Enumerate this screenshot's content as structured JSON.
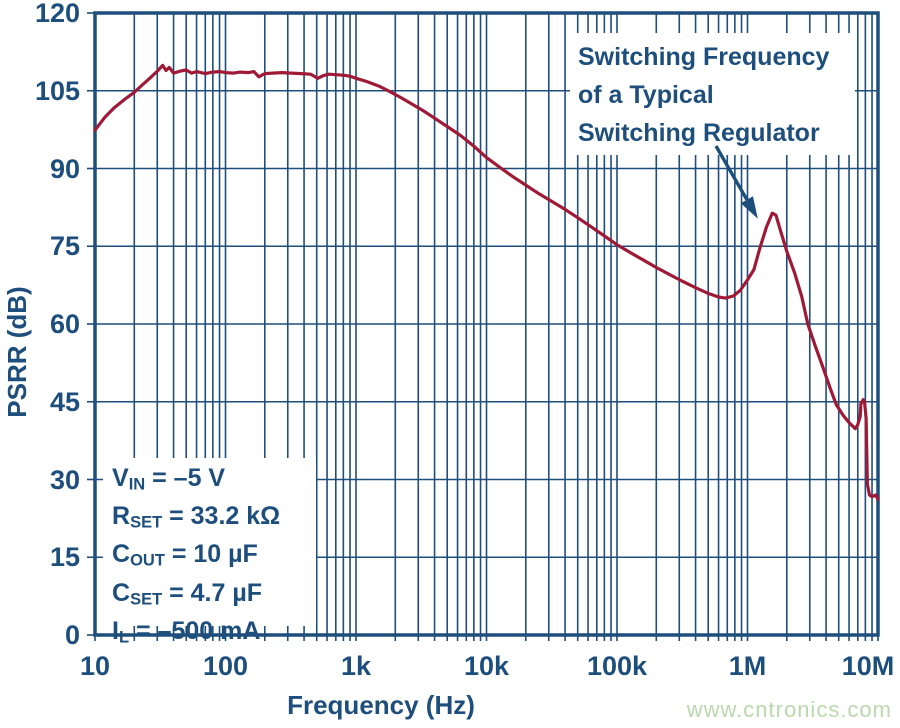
{
  "watermark": {
    "text": "www.cntronics.com",
    "color": "#b9d9ad"
  },
  "chart_data": {
    "type": "line",
    "title": "",
    "xlabel": "Frequency (Hz)",
    "ylabel": "PSRR (dB)",
    "x_scale": "log",
    "xlim": [
      10,
      10000000
    ],
    "ylim": [
      0,
      120
    ],
    "grid": "full log minor + major grid, navy",
    "legend": "none",
    "colors": {
      "axis": "#1d4e7c",
      "curve": "#9e1a36"
    },
    "x_ticks": [
      {
        "v": 10,
        "label": "10"
      },
      {
        "v": 100,
        "label": "100"
      },
      {
        "v": 1000,
        "label": "1k"
      },
      {
        "v": 10000,
        "label": "10k"
      },
      {
        "v": 100000,
        "label": "100k"
      },
      {
        "v": 1000000,
        "label": "1M"
      },
      {
        "v": 10000000,
        "label": "10M"
      }
    ],
    "y_ticks": [
      {
        "v": 0,
        "label": "0"
      },
      {
        "v": 15,
        "label": "15"
      },
      {
        "v": 30,
        "label": "30"
      },
      {
        "v": 45,
        "label": "45"
      },
      {
        "v": 60,
        "label": "60"
      },
      {
        "v": 75,
        "label": "75"
      },
      {
        "v": 90,
        "label": "90"
      },
      {
        "v": 105,
        "label": "105"
      },
      {
        "v": 120,
        "label": "120"
      }
    ],
    "series": [
      {
        "name": "PSRR",
        "points": [
          [
            10,
            97.4
          ],
          [
            12,
            100.0
          ],
          [
            14,
            101.7
          ],
          [
            17,
            103.4
          ],
          [
            20,
            104.7
          ],
          [
            23,
            106.1
          ],
          [
            26,
            107.3
          ],
          [
            30,
            108.8
          ],
          [
            33,
            109.9
          ],
          [
            35,
            108.9
          ],
          [
            37,
            109.5
          ],
          [
            40,
            108.4
          ],
          [
            45,
            108.8
          ],
          [
            50,
            109.0
          ],
          [
            55,
            108.4
          ],
          [
            60,
            108.7
          ],
          [
            70,
            108.3
          ],
          [
            80,
            108.6
          ],
          [
            90,
            108.7
          ],
          [
            100,
            108.5
          ],
          [
            115,
            108.4
          ],
          [
            130,
            108.6
          ],
          [
            150,
            108.5
          ],
          [
            165,
            108.7
          ],
          [
            180,
            107.7
          ],
          [
            200,
            108.3
          ],
          [
            230,
            108.4
          ],
          [
            270,
            108.5
          ],
          [
            320,
            108.4
          ],
          [
            380,
            108.3
          ],
          [
            450,
            108.2
          ],
          [
            510,
            107.4
          ],
          [
            560,
            107.9
          ],
          [
            620,
            108.2
          ],
          [
            700,
            108.1
          ],
          [
            800,
            108.0
          ],
          [
            900,
            107.8
          ],
          [
            1000,
            107.4
          ],
          [
            1200,
            106.8
          ],
          [
            1500,
            105.9
          ],
          [
            1800,
            104.9
          ],
          [
            2200,
            103.7
          ],
          [
            2700,
            102.4
          ],
          [
            3300,
            101.1
          ],
          [
            4000,
            99.7
          ],
          [
            5000,
            98.1
          ],
          [
            6300,
            96.4
          ],
          [
            8000,
            94.3
          ],
          [
            10000,
            92.1
          ],
          [
            13000,
            90.0
          ],
          [
            16000,
            88.4
          ],
          [
            20000,
            86.8
          ],
          [
            25000,
            85.2
          ],
          [
            32000,
            83.6
          ],
          [
            40000,
            82.1
          ],
          [
            50000,
            80.5
          ],
          [
            63000,
            78.8
          ],
          [
            80000,
            77.0
          ],
          [
            100000,
            75.3
          ],
          [
            130000,
            73.6
          ],
          [
            160000,
            72.3
          ],
          [
            200000,
            70.9
          ],
          [
            250000,
            69.6
          ],
          [
            320000,
            68.2
          ],
          [
            400000,
            67.0
          ],
          [
            500000,
            65.9
          ],
          [
            600000,
            65.2
          ],
          [
            680000,
            65.0
          ],
          [
            780000,
            65.4
          ],
          [
            880000,
            66.5
          ],
          [
            1000000,
            68.5
          ],
          [
            1120000,
            70.5
          ],
          [
            1250000,
            74.8
          ],
          [
            1400000,
            78.8
          ],
          [
            1550000,
            81.4
          ],
          [
            1650000,
            81.0
          ],
          [
            1800000,
            77.8
          ],
          [
            2000000,
            74.0
          ],
          [
            2300000,
            69.8
          ],
          [
            2600000,
            65.3
          ],
          [
            2900000,
            60.0
          ],
          [
            3300000,
            55.8
          ],
          [
            3800000,
            51.5
          ],
          [
            4300000,
            47.6
          ],
          [
            4800000,
            44.4
          ],
          [
            5400000,
            42.4
          ],
          [
            6000000,
            41.0
          ],
          [
            6700000,
            39.8
          ],
          [
            7000000,
            40.6
          ],
          [
            7300000,
            42.2
          ],
          [
            7400000,
            44.6
          ],
          [
            7700000,
            45.4
          ],
          [
            7900000,
            44.9
          ],
          [
            8100000,
            41.8
          ],
          [
            8200000,
            34.9
          ],
          [
            8300000,
            29.1
          ],
          [
            8600000,
            27.0
          ],
          [
            9000000,
            26.7
          ],
          [
            9600000,
            27.0
          ],
          [
            10000000,
            26.2
          ]
        ]
      }
    ],
    "annotation": {
      "lines": [
        "Switching Frequency",
        "of a Typical",
        "Switching Regulator"
      ],
      "arrow_tip_hz": 1200000,
      "arrow_tip_db": 80.3
    },
    "conditions": [
      {
        "base": "V",
        "sub": "IN",
        "value": " = –5 V"
      },
      {
        "base": "R",
        "sub": "SET",
        "value": " = 33.2 kΩ"
      },
      {
        "base": "C",
        "sub": "OUT",
        "value": " = 10 µF"
      },
      {
        "base": "C",
        "sub": "SET",
        "value": " = 4.7 µF"
      },
      {
        "base": "I",
        "sub": "L",
        "value": " = –500 mA"
      }
    ]
  }
}
